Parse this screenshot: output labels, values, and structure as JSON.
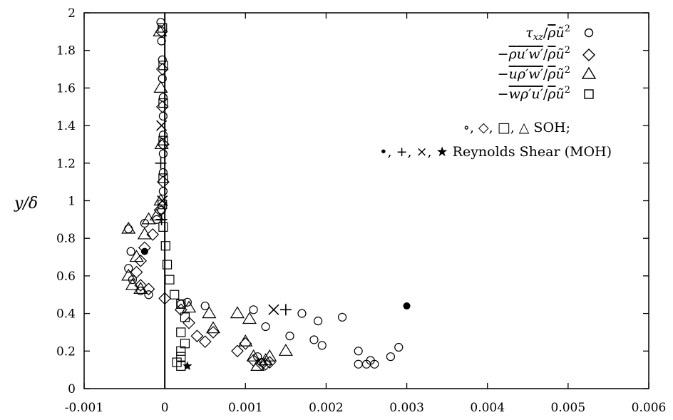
{
  "chart_data": {
    "type": "scatter",
    "xlabel": "",
    "ylabel": "y/δ",
    "xlim": [
      -0.001,
      0.006
    ],
    "ylim": [
      0,
      2
    ],
    "x_ticks": [
      "-0.001",
      "0",
      "0.001",
      "0.002",
      "0.003",
      "0.004",
      "0.005",
      "0.006"
    ],
    "y_ticks": [
      "0",
      "0.2",
      "0.4",
      "0.6",
      "0.8",
      "1",
      "1.2",
      "1.4",
      "1.6",
      "1.8",
      "2"
    ],
    "legend_position": "top-right",
    "legend_note_1": "∘, ◇, □, △ SOH;",
    "legend_note_2": "•, +, ×, ★ Reynolds Shear (MOH)",
    "series": [
      {
        "name": "τxz/ρ̄ũ²",
        "marker": "circle",
        "points": [
          [
            -5e-05,
            1.95
          ],
          [
            -4e-05,
            1.85
          ],
          [
            -3e-05,
            1.75
          ],
          [
            -3e-05,
            1.65
          ],
          [
            -2e-05,
            1.55
          ],
          [
            -2e-05,
            1.45
          ],
          [
            -2e-05,
            1.35
          ],
          [
            -2e-05,
            1.25
          ],
          [
            -2e-05,
            1.15
          ],
          [
            -2e-05,
            1.05
          ],
          [
            -4e-05,
            0.95
          ],
          [
            -0.0001,
            0.9
          ],
          [
            -0.00025,
            0.88
          ],
          [
            -0.00045,
            0.85
          ],
          [
            -0.00042,
            0.73
          ],
          [
            -0.00045,
            0.64
          ],
          [
            -0.0004,
            0.58
          ],
          [
            -0.0003,
            0.52
          ],
          [
            -0.0002,
            0.5
          ],
          [
            0.0002,
            0.45
          ],
          [
            0.00028,
            0.46
          ],
          [
            0.0005,
            0.44
          ],
          [
            0.0011,
            0.42
          ],
          [
            0.00125,
            0.33
          ],
          [
            0.0017,
            0.4
          ],
          [
            0.0019,
            0.36
          ],
          [
            0.0022,
            0.38
          ],
          [
            0.00155,
            0.28
          ],
          [
            0.00185,
            0.26
          ],
          [
            0.00195,
            0.23
          ],
          [
            0.0024,
            0.2
          ],
          [
            0.0025,
            0.13
          ],
          [
            0.00255,
            0.15
          ],
          [
            0.0026,
            0.13
          ],
          [
            0.0028,
            0.17
          ],
          [
            0.0029,
            0.22
          ],
          [
            0.0024,
            0.13
          ],
          [
            0.00115,
            0.17
          ],
          [
            0.0012,
            0.14
          ]
        ]
      },
      {
        "name": "−ρ̄u′w′/ρ̄ũ²",
        "marker": "diamond",
        "points": [
          [
            -4e-05,
            1.9
          ],
          [
            -3e-05,
            1.7
          ],
          [
            -3e-05,
            1.5
          ],
          [
            -2e-05,
            1.3
          ],
          [
            -2e-05,
            1.1
          ],
          [
            -6e-05,
            0.95
          ],
          [
            -0.00015,
            0.82
          ],
          [
            -0.00025,
            0.75
          ],
          [
            -0.0003,
            0.68
          ],
          [
            -0.00035,
            0.62
          ],
          [
            -0.0003,
            0.55
          ],
          [
            -0.0002,
            0.53
          ],
          [
            0.0,
            0.48
          ],
          [
            0.0002,
            0.42
          ],
          [
            0.0003,
            0.35
          ],
          [
            0.0004,
            0.28
          ],
          [
            0.0005,
            0.25
          ],
          [
            0.0006,
            0.3
          ],
          [
            0.0009,
            0.2
          ],
          [
            0.001,
            0.24
          ],
          [
            0.0011,
            0.15
          ],
          [
            0.0012,
            0.13
          ],
          [
            0.00125,
            0.13
          ],
          [
            0.0013,
            0.14
          ]
        ]
      },
      {
        "name": "−ũρ′w′/ρ̄ũ²",
        "marker": "triangle",
        "points": [
          [
            -6e-05,
            1.9
          ],
          [
            -5e-05,
            1.6
          ],
          [
            -4e-05,
            1.3
          ],
          [
            -5e-05,
            1.0
          ],
          [
            -0.0001,
            0.92
          ],
          [
            -0.0002,
            0.9
          ],
          [
            -0.00025,
            0.82
          ],
          [
            -0.00045,
            0.85
          ],
          [
            -0.00035,
            0.7
          ],
          [
            -0.00045,
            0.6
          ],
          [
            -0.0004,
            0.55
          ],
          [
            -0.0003,
            0.53
          ],
          [
            0.0003,
            0.43
          ],
          [
            0.00055,
            0.4
          ],
          [
            0.0006,
            0.32
          ],
          [
            0.0009,
            0.4
          ],
          [
            0.001,
            0.25
          ],
          [
            0.00105,
            0.37
          ],
          [
            0.0011,
            0.17
          ],
          [
            0.00115,
            0.12
          ],
          [
            0.0013,
            0.17
          ],
          [
            0.0015,
            0.2
          ],
          [
            0.00125,
            0.15
          ]
        ]
      },
      {
        "name": "−w̃ρ′u′/ρ̄ũ²",
        "marker": "square",
        "points": [
          [
            -3e-05,
            1.92
          ],
          [
            -2e-05,
            1.72
          ],
          [
            -2e-05,
            1.52
          ],
          [
            -2e-05,
            1.32
          ],
          [
            -2e-05,
            1.12
          ],
          [
            -3e-05,
            0.98
          ],
          [
            -2e-05,
            0.86
          ],
          [
            1e-05,
            0.76
          ],
          [
            3e-05,
            0.66
          ],
          [
            6e-05,
            0.58
          ],
          [
            0.00012,
            0.5
          ],
          [
            0.0002,
            0.45
          ],
          [
            0.00025,
            0.38
          ],
          [
            0.0002,
            0.3
          ],
          [
            0.00025,
            0.24
          ],
          [
            0.0002,
            0.2
          ],
          [
            0.00015,
            0.14
          ],
          [
            0.0002,
            0.12
          ],
          [
            0.0002,
            0.17
          ]
        ]
      },
      {
        "name": "Reynolds Shear (MOH) •",
        "marker": "dot",
        "points": [
          [
            0.003,
            0.44
          ],
          [
            -0.00025,
            0.73
          ]
        ]
      },
      {
        "name": "Reynolds Shear (MOH) +",
        "marker": "plus",
        "points": [
          [
            0.0015,
            0.42
          ],
          [
            -5e-05,
            1.2
          ],
          [
            -4e-05,
            0.9
          ]
        ]
      },
      {
        "name": "Reynolds Shear (MOH) ×",
        "marker": "cross",
        "points": [
          [
            0.00135,
            0.42
          ],
          [
            -4e-05,
            1.4
          ],
          [
            -3e-05,
            1.0
          ]
        ]
      },
      {
        "name": "Reynolds Shear (MOH) ★",
        "marker": "star",
        "points": [
          [
            0.00028,
            0.12
          ]
        ]
      }
    ]
  }
}
